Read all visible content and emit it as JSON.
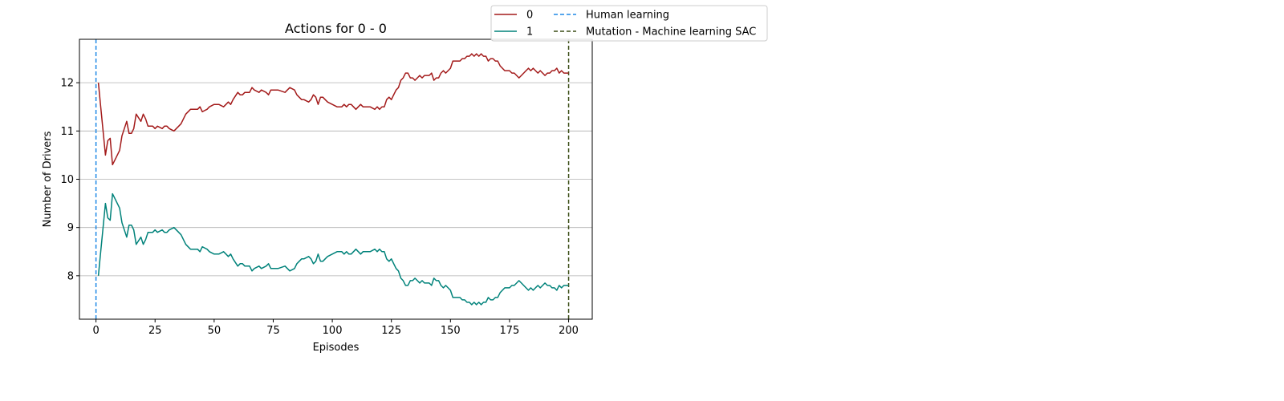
{
  "chart_data": {
    "type": "line",
    "title": "Actions for 0 - 0",
    "xlabel": "Episodes",
    "ylabel": "Number of Drivers",
    "xlim": [
      -7,
      210
    ],
    "ylim": [
      7.1,
      12.9
    ],
    "xticks": [
      0,
      25,
      50,
      75,
      100,
      125,
      150,
      175,
      200
    ],
    "yticks": [
      8,
      9,
      10,
      11,
      12
    ],
    "grid": "y",
    "legend_placement": "top-center outside right",
    "series": [
      {
        "name": "0",
        "color": "#a31a1a",
        "x": [
          1,
          2,
          4,
          5,
          6,
          7,
          8,
          10,
          11,
          13,
          14,
          15,
          16,
          17,
          19,
          20,
          21,
          22,
          24,
          25,
          26,
          28,
          29,
          30,
          31,
          33,
          35,
          36,
          38,
          40,
          42,
          43,
          44,
          45,
          47,
          48,
          50,
          52,
          54,
          55,
          56,
          57,
          58,
          60,
          61,
          62,
          63,
          65,
          66,
          67,
          69,
          70,
          72,
          73,
          74,
          75,
          77,
          80,
          81,
          82,
          84,
          85,
          87,
          88,
          90,
          91,
          92,
          93,
          94,
          95,
          96,
          97,
          98,
          100,
          102,
          104,
          105,
          106,
          107,
          108,
          110,
          111,
          112,
          113,
          114,
          116,
          118,
          119,
          120,
          121,
          122,
          123,
          124,
          125,
          126,
          127,
          128,
          129,
          130,
          131,
          132,
          133,
          134,
          135,
          136,
          137,
          138,
          139,
          140,
          141,
          142,
          143,
          144,
          145,
          146,
          147,
          148,
          149,
          150,
          151,
          152,
          153,
          154,
          155,
          156,
          157,
          158,
          159,
          160,
          161,
          162,
          163,
          164,
          165,
          166,
          167,
          168,
          169,
          170,
          171,
          172,
          173,
          174,
          175,
          176,
          177,
          178,
          179,
          180,
          181,
          182,
          183,
          184,
          185,
          186,
          187,
          188,
          189,
          190,
          191,
          192,
          193,
          194,
          195,
          196,
          197,
          198,
          199,
          200
        ],
        "y": [
          12.0,
          11.5,
          10.5,
          10.8,
          10.85,
          10.3,
          10.4,
          10.6,
          10.9,
          11.2,
          10.95,
          10.95,
          11.05,
          11.35,
          11.2,
          11.35,
          11.25,
          11.1,
          11.1,
          11.05,
          11.1,
          11.05,
          11.1,
          11.1,
          11.05,
          11.0,
          11.1,
          11.15,
          11.35,
          11.45,
          11.45,
          11.45,
          11.5,
          11.4,
          11.45,
          11.5,
          11.55,
          11.55,
          11.5,
          11.55,
          11.6,
          11.55,
          11.65,
          11.8,
          11.75,
          11.75,
          11.8,
          11.8,
          11.9,
          11.85,
          11.8,
          11.85,
          11.8,
          11.75,
          11.85,
          11.85,
          11.85,
          11.8,
          11.85,
          11.9,
          11.85,
          11.75,
          11.65,
          11.65,
          11.6,
          11.65,
          11.75,
          11.7,
          11.55,
          11.7,
          11.7,
          11.65,
          11.6,
          11.55,
          11.5,
          11.5,
          11.55,
          11.5,
          11.55,
          11.55,
          11.45,
          11.5,
          11.55,
          11.5,
          11.5,
          11.5,
          11.45,
          11.5,
          11.45,
          11.5,
          11.5,
          11.65,
          11.7,
          11.65,
          11.75,
          11.85,
          11.9,
          12.05,
          12.1,
          12.2,
          12.2,
          12.1,
          12.1,
          12.05,
          12.1,
          12.15,
          12.1,
          12.15,
          12.15,
          12.15,
          12.2,
          12.05,
          12.1,
          12.1,
          12.2,
          12.25,
          12.2,
          12.25,
          12.3,
          12.45,
          12.45,
          12.45,
          12.45,
          12.5,
          12.5,
          12.55,
          12.55,
          12.6,
          12.55,
          12.6,
          12.55,
          12.6,
          12.55,
          12.55,
          12.45,
          12.5,
          12.5,
          12.45,
          12.45,
          12.35,
          12.3,
          12.25,
          12.25,
          12.25,
          12.2,
          12.2,
          12.15,
          12.1,
          12.15,
          12.2,
          12.25,
          12.3,
          12.25,
          12.3,
          12.25,
          12.2,
          12.25,
          12.2,
          12.15,
          12.2,
          12.2,
          12.25,
          12.25,
          12.3,
          12.2,
          12.25,
          12.2,
          12.2,
          12.2
        ]
      },
      {
        "name": "1",
        "color": "#00827a",
        "x": [
          1,
          2,
          4,
          5,
          6,
          7,
          8,
          10,
          11,
          13,
          14,
          15,
          16,
          17,
          19,
          20,
          21,
          22,
          24,
          25,
          26,
          28,
          29,
          30,
          31,
          33,
          35,
          36,
          38,
          40,
          42,
          43,
          44,
          45,
          47,
          48,
          50,
          52,
          54,
          55,
          56,
          57,
          58,
          60,
          61,
          62,
          63,
          65,
          66,
          67,
          69,
          70,
          72,
          73,
          74,
          75,
          77,
          80,
          81,
          82,
          84,
          85,
          87,
          88,
          90,
          91,
          92,
          93,
          94,
          95,
          96,
          97,
          98,
          100,
          102,
          104,
          105,
          106,
          107,
          108,
          110,
          111,
          112,
          113,
          114,
          116,
          118,
          119,
          120,
          121,
          122,
          123,
          124,
          125,
          126,
          127,
          128,
          129,
          130,
          131,
          132,
          133,
          134,
          135,
          136,
          137,
          138,
          139,
          140,
          141,
          142,
          143,
          144,
          145,
          146,
          147,
          148,
          149,
          150,
          151,
          152,
          153,
          154,
          155,
          156,
          157,
          158,
          159,
          160,
          161,
          162,
          163,
          164,
          165,
          166,
          167,
          168,
          169,
          170,
          171,
          172,
          173,
          174,
          175,
          176,
          177,
          178,
          179,
          180,
          181,
          182,
          183,
          184,
          185,
          186,
          187,
          188,
          189,
          190,
          191,
          192,
          193,
          194,
          195,
          196,
          197,
          198,
          199,
          200
        ],
        "y": [
          8.0,
          8.5,
          9.5,
          9.2,
          9.15,
          9.7,
          9.6,
          9.4,
          9.1,
          8.8,
          9.05,
          9.05,
          8.95,
          8.65,
          8.8,
          8.65,
          8.75,
          8.9,
          8.9,
          8.95,
          8.9,
          8.95,
          8.9,
          8.9,
          8.95,
          9.0,
          8.9,
          8.85,
          8.65,
          8.55,
          8.55,
          8.55,
          8.5,
          8.6,
          8.55,
          8.5,
          8.45,
          8.45,
          8.5,
          8.45,
          8.4,
          8.45,
          8.35,
          8.2,
          8.25,
          8.25,
          8.2,
          8.2,
          8.1,
          8.15,
          8.2,
          8.15,
          8.2,
          8.25,
          8.15,
          8.15,
          8.15,
          8.2,
          8.15,
          8.1,
          8.15,
          8.25,
          8.35,
          8.35,
          8.4,
          8.35,
          8.25,
          8.3,
          8.45,
          8.3,
          8.3,
          8.35,
          8.4,
          8.45,
          8.5,
          8.5,
          8.45,
          8.5,
          8.45,
          8.45,
          8.55,
          8.5,
          8.45,
          8.5,
          8.5,
          8.5,
          8.55,
          8.5,
          8.55,
          8.5,
          8.5,
          8.35,
          8.3,
          8.35,
          8.25,
          8.15,
          8.1,
          7.95,
          7.9,
          7.8,
          7.8,
          7.9,
          7.9,
          7.95,
          7.9,
          7.85,
          7.9,
          7.85,
          7.85,
          7.85,
          7.8,
          7.95,
          7.9,
          7.9,
          7.8,
          7.75,
          7.8,
          7.75,
          7.7,
          7.55,
          7.55,
          7.55,
          7.55,
          7.5,
          7.5,
          7.45,
          7.45,
          7.4,
          7.45,
          7.4,
          7.45,
          7.4,
          7.45,
          7.45,
          7.55,
          7.5,
          7.5,
          7.55,
          7.55,
          7.65,
          7.7,
          7.75,
          7.75,
          7.75,
          7.8,
          7.8,
          7.85,
          7.9,
          7.85,
          7.8,
          7.75,
          7.7,
          7.75,
          7.7,
          7.75,
          7.8,
          7.75,
          7.8,
          7.85,
          7.8,
          7.8,
          7.75,
          7.75,
          7.7,
          7.8,
          7.75,
          7.8,
          7.8,
          7.8
        ]
      }
    ],
    "vlines": [
      {
        "name": "Human learning",
        "x": 0,
        "color": "#1e88e5",
        "style": "dashed"
      },
      {
        "name": "Mutation - Machine learning SAC",
        "x": 200,
        "color": "#3b4d16",
        "style": "dashed"
      }
    ]
  }
}
